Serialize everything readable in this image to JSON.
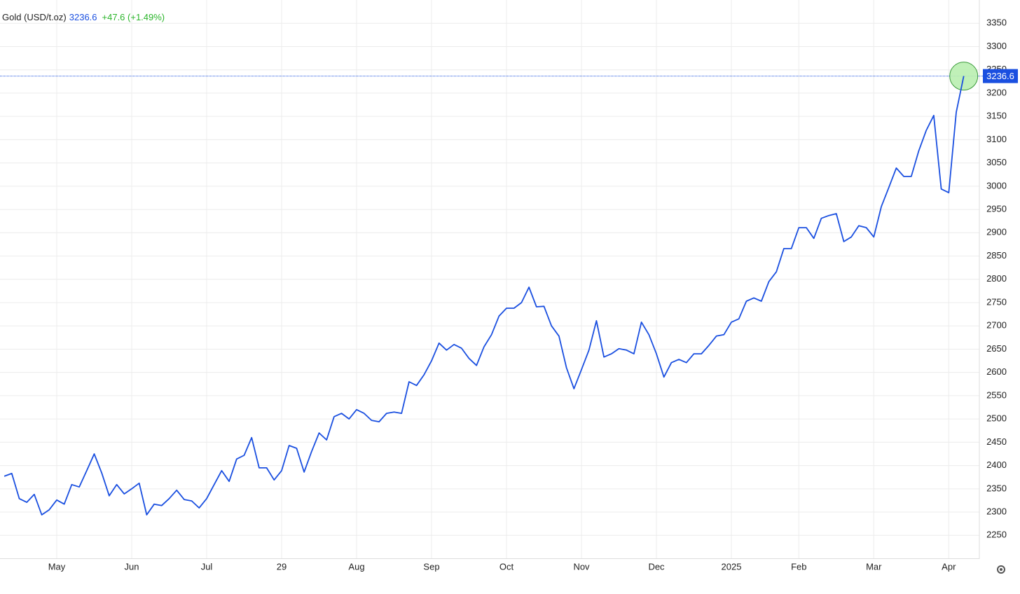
{
  "chart_data": {
    "type": "line",
    "change": "+47.6 (+1.49%)",
    "categories": [
      null,
      null,
      null,
      null,
      null,
      null,
      null,
      "May",
      null,
      null,
      null,
      null,
      null,
      null,
      null,
      null,
      null,
      "Jun",
      null,
      null,
      null,
      null,
      null,
      null,
      null,
      null,
      null,
      "Jul",
      null,
      null,
      null,
      null,
      null,
      null,
      null,
      null,
      null,
      "29",
      null,
      null,
      null,
      null,
      null,
      null,
      null,
      null,
      null,
      "Aug",
      null,
      null,
      null,
      null,
      null,
      null,
      null,
      null,
      null,
      "Sep",
      null,
      null,
      null,
      null,
      null,
      null,
      null,
      null,
      null,
      "Oct",
      null,
      null,
      null,
      null,
      null,
      null,
      null,
      null,
      null,
      "Nov",
      null,
      null,
      null,
      null,
      null,
      null,
      null,
      null,
      null,
      "Dec",
      null,
      null,
      null,
      null,
      null,
      null,
      null,
      null,
      null,
      "2025",
      null,
      null,
      null,
      null,
      null,
      null,
      null,
      null,
      "Feb",
      null,
      null,
      null,
      null,
      null,
      null,
      null,
      null,
      null,
      "Mar",
      null,
      null,
      null,
      null,
      null,
      null,
      null,
      null,
      null,
      "Apr",
      null,
      null
    ],
    "series": [
      {
        "name": "Gold (USD/t.oz)",
        "color": "#1a4fe0",
        "values": [
          2377,
          2383,
          2329,
          2321,
          2338,
          2294,
          2305,
          2326,
          2317,
          2359,
          2354,
          2389,
          2425,
          2384,
          2335,
          2359,
          2339,
          2350,
          2362,
          2294,
          2317,
          2314,
          2329,
          2347,
          2327,
          2324,
          2309,
          2329,
          2359,
          2389,
          2366,
          2414,
          2422,
          2460,
          2395,
          2395,
          2369,
          2389,
          2443,
          2437,
          2386,
          2430,
          2470,
          2455,
          2505,
          2512,
          2500,
          2520,
          2512,
          2497,
          2494,
          2512,
          2515,
          2512,
          2580,
          2572,
          2595,
          2625,
          2663,
          2648,
          2660,
          2652,
          2630,
          2615,
          2655,
          2681,
          2721,
          2738,
          2738,
          2750,
          2783,
          2741,
          2742,
          2700,
          2678,
          2610,
          2565,
          2606,
          2648,
          2711,
          2633,
          2640,
          2651,
          2648,
          2640,
          2708,
          2681,
          2640,
          2590,
          2621,
          2628,
          2621,
          2640,
          2640,
          2658,
          2678,
          2681,
          2708,
          2715,
          2753,
          2760,
          2753,
          2795,
          2816,
          2866,
          2866,
          2911,
          2911,
          2888,
          2931,
          2937,
          2941,
          2881,
          2891,
          2915,
          2911,
          2891,
          2956,
          2997,
          3039,
          3021,
          3021,
          3076,
          3120,
          3152,
          2994,
          2986,
          3159,
          3236.6
        ]
      }
    ],
    "ylim": [
      2200,
      3400
    ],
    "yticks": [
      2250,
      2300,
      2350,
      2400,
      2450,
      2500,
      2550,
      2600,
      2650,
      2700,
      2750,
      2800,
      2850,
      2900,
      2950,
      3000,
      3050,
      3100,
      3150,
      3200,
      3250,
      3300,
      3350
    ],
    "grid": true
  }
}
